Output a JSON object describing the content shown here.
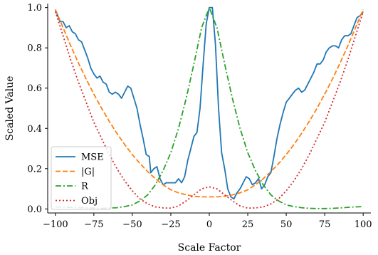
{
  "chart_data": {
    "type": "line",
    "title": "",
    "xlabel": "Scale Factor",
    "ylabel": "Scaled Value",
    "xlim": [
      -105,
      105
    ],
    "ylim": [
      -0.02,
      1.02
    ],
    "x_ticks": [
      -100,
      -75,
      -50,
      -25,
      0,
      25,
      50,
      75,
      100
    ],
    "x_tick_labels": [
      "−100",
      "−75",
      "−50",
      "−25",
      "0",
      "25",
      "50",
      "75",
      "100"
    ],
    "y_ticks": [
      0.0,
      0.2,
      0.4,
      0.6,
      0.8,
      1.0
    ],
    "y_tick_labels": [
      "0.0",
      "0.2",
      "0.4",
      "0.6",
      "0.8",
      "1.0"
    ],
    "grid": false,
    "legend_position": "bottom-left",
    "series": [
      {
        "name": "MSE",
        "color": "#1f77b4",
        "dash": "solid",
        "points": [
          [
            -100,
            0.99
          ],
          [
            -97,
            0.93
          ],
          [
            -95,
            0.93
          ],
          [
            -93,
            0.9
          ],
          [
            -91,
            0.91
          ],
          [
            -89,
            0.88
          ],
          [
            -87,
            0.87
          ],
          [
            -85,
            0.84
          ],
          [
            -83,
            0.83
          ],
          [
            -81,
            0.79
          ],
          [
            -79,
            0.75
          ],
          [
            -77,
            0.7
          ],
          [
            -75,
            0.67
          ],
          [
            -73,
            0.65
          ],
          [
            -71,
            0.66
          ],
          [
            -69,
            0.63
          ],
          [
            -67,
            0.62
          ],
          [
            -65,
            0.58
          ],
          [
            -63,
            0.57
          ],
          [
            -61,
            0.58
          ],
          [
            -59,
            0.57
          ],
          [
            -57,
            0.55
          ],
          [
            -55,
            0.58
          ],
          [
            -53,
            0.61
          ],
          [
            -51,
            0.6
          ],
          [
            -49,
            0.55
          ],
          [
            -47,
            0.5
          ],
          [
            -45,
            0.42
          ],
          [
            -43,
            0.35
          ],
          [
            -41,
            0.27
          ],
          [
            -39,
            0.26
          ],
          [
            -38,
            0.18
          ],
          [
            -36,
            0.2
          ],
          [
            -34,
            0.21
          ],
          [
            -32,
            0.15
          ],
          [
            -30,
            0.12
          ],
          [
            -28,
            0.13
          ],
          [
            -26,
            0.13
          ],
          [
            -24,
            0.13
          ],
          [
            -22,
            0.13
          ],
          [
            -20,
            0.15
          ],
          [
            -18,
            0.13
          ],
          [
            -16,
            0.16
          ],
          [
            -14,
            0.24
          ],
          [
            -12,
            0.3
          ],
          [
            -10,
            0.36
          ],
          [
            -8,
            0.38
          ],
          [
            -6,
            0.5
          ],
          [
            -4,
            0.72
          ],
          [
            -2,
            0.92
          ],
          [
            0,
            1.0
          ],
          [
            2,
            1.0
          ],
          [
            4,
            0.82
          ],
          [
            6,
            0.5
          ],
          [
            8,
            0.28
          ],
          [
            10,
            0.2
          ],
          [
            12,
            0.1
          ],
          [
            14,
            0.06
          ],
          [
            16,
            0.05
          ],
          [
            18,
            0.08
          ],
          [
            20,
            0.1
          ],
          [
            22,
            0.13
          ],
          [
            24,
            0.16
          ],
          [
            26,
            0.15
          ],
          [
            28,
            0.12
          ],
          [
            30,
            0.13
          ],
          [
            32,
            0.15
          ],
          [
            34,
            0.1
          ],
          [
            36,
            0.12
          ],
          [
            38,
            0.16
          ],
          [
            40,
            0.18
          ],
          [
            42,
            0.26
          ],
          [
            44,
            0.35
          ],
          [
            46,
            0.42
          ],
          [
            48,
            0.48
          ],
          [
            50,
            0.53
          ],
          [
            52,
            0.55
          ],
          [
            54,
            0.57
          ],
          [
            56,
            0.59
          ],
          [
            58,
            0.6
          ],
          [
            60,
            0.58
          ],
          [
            62,
            0.59
          ],
          [
            64,
            0.62
          ],
          [
            66,
            0.65
          ],
          [
            68,
            0.68
          ],
          [
            70,
            0.72
          ],
          [
            72,
            0.72
          ],
          [
            74,
            0.74
          ],
          [
            76,
            0.78
          ],
          [
            78,
            0.8
          ],
          [
            80,
            0.81
          ],
          [
            82,
            0.81
          ],
          [
            84,
            0.8
          ],
          [
            86,
            0.84
          ],
          [
            88,
            0.86
          ],
          [
            90,
            0.86
          ],
          [
            92,
            0.87
          ],
          [
            94,
            0.91
          ],
          [
            96,
            0.95
          ],
          [
            98,
            0.96
          ],
          [
            100,
            0.98
          ]
        ]
      },
      {
        "name": "|G|",
        "color": "#ff7f0e",
        "dash": "dashed",
        "points": [
          [
            -100,
            0.99
          ],
          [
            -95,
            0.9
          ],
          [
            -90,
            0.81
          ],
          [
            -85,
            0.725
          ],
          [
            -80,
            0.645
          ],
          [
            -75,
            0.57
          ],
          [
            -70,
            0.5
          ],
          [
            -65,
            0.435
          ],
          [
            -60,
            0.375
          ],
          [
            -55,
            0.32
          ],
          [
            -50,
            0.27
          ],
          [
            -45,
            0.225
          ],
          [
            -40,
            0.185
          ],
          [
            -35,
            0.15
          ],
          [
            -30,
            0.12
          ],
          [
            -25,
            0.095
          ],
          [
            -20,
            0.08
          ],
          [
            -15,
            0.07
          ],
          [
            -10,
            0.063
          ],
          [
            -5,
            0.06
          ],
          [
            0,
            0.06
          ],
          [
            5,
            0.06
          ],
          [
            10,
            0.063
          ],
          [
            15,
            0.07
          ],
          [
            20,
            0.08
          ],
          [
            25,
            0.095
          ],
          [
            30,
            0.12
          ],
          [
            35,
            0.15
          ],
          [
            40,
            0.185
          ],
          [
            45,
            0.225
          ],
          [
            50,
            0.27
          ],
          [
            55,
            0.32
          ],
          [
            60,
            0.375
          ],
          [
            65,
            0.435
          ],
          [
            70,
            0.5
          ],
          [
            75,
            0.57
          ],
          [
            80,
            0.645
          ],
          [
            85,
            0.725
          ],
          [
            90,
            0.81
          ],
          [
            95,
            0.9
          ],
          [
            100,
            0.99
          ]
        ]
      },
      {
        "name": "R",
        "color": "#2ca02c",
        "dash": "dashdot",
        "points": [
          [
            -100,
            0.01
          ],
          [
            -90,
            0.008
          ],
          [
            -80,
            0.005
          ],
          [
            -70,
            0.003
          ],
          [
            -60,
            0.006
          ],
          [
            -55,
            0.012
          ],
          [
            -50,
            0.02
          ],
          [
            -45,
            0.04
          ],
          [
            -40,
            0.07
          ],
          [
            -35,
            0.12
          ],
          [
            -30,
            0.19
          ],
          [
            -25,
            0.28
          ],
          [
            -20,
            0.4
          ],
          [
            -15,
            0.55
          ],
          [
            -10,
            0.72
          ],
          [
            -5,
            0.9
          ],
          [
            0,
            1.0
          ],
          [
            5,
            0.9
          ],
          [
            10,
            0.72
          ],
          [
            15,
            0.55
          ],
          [
            20,
            0.4
          ],
          [
            25,
            0.28
          ],
          [
            30,
            0.19
          ],
          [
            35,
            0.12
          ],
          [
            40,
            0.07
          ],
          [
            45,
            0.04
          ],
          [
            50,
            0.02
          ],
          [
            55,
            0.012
          ],
          [
            60,
            0.006
          ],
          [
            65,
            0.003
          ],
          [
            70,
            0.002
          ],
          [
            75,
            0.002
          ],
          [
            80,
            0.003
          ],
          [
            85,
            0.005
          ],
          [
            90,
            0.008
          ],
          [
            95,
            0.01
          ],
          [
            100,
            0.012
          ]
        ]
      },
      {
        "name": "Obj",
        "color": "#d62728",
        "dash": "dotted",
        "points": [
          [
            -100,
            0.98
          ],
          [
            -95,
            0.86
          ],
          [
            -90,
            0.74
          ],
          [
            -85,
            0.63
          ],
          [
            -80,
            0.53
          ],
          [
            -75,
            0.43
          ],
          [
            -70,
            0.35
          ],
          [
            -65,
            0.27
          ],
          [
            -60,
            0.2
          ],
          [
            -55,
            0.14
          ],
          [
            -50,
            0.09
          ],
          [
            -45,
            0.05
          ],
          [
            -40,
            0.025
          ],
          [
            -35,
            0.01
          ],
          [
            -30,
            0.005
          ],
          [
            -25,
            0.004
          ],
          [
            -20,
            0.015
          ],
          [
            -15,
            0.04
          ],
          [
            -10,
            0.07
          ],
          [
            -5,
            0.1
          ],
          [
            0,
            0.11
          ],
          [
            5,
            0.1
          ],
          [
            10,
            0.07
          ],
          [
            15,
            0.04
          ],
          [
            20,
            0.015
          ],
          [
            25,
            0.004
          ],
          [
            30,
            0.005
          ],
          [
            35,
            0.01
          ],
          [
            40,
            0.025
          ],
          [
            45,
            0.05
          ],
          [
            50,
            0.09
          ],
          [
            55,
            0.14
          ],
          [
            60,
            0.2
          ],
          [
            65,
            0.27
          ],
          [
            70,
            0.35
          ],
          [
            75,
            0.43
          ],
          [
            80,
            0.53
          ],
          [
            85,
            0.63
          ],
          [
            90,
            0.74
          ],
          [
            95,
            0.86
          ],
          [
            100,
            0.98
          ]
        ]
      }
    ]
  }
}
